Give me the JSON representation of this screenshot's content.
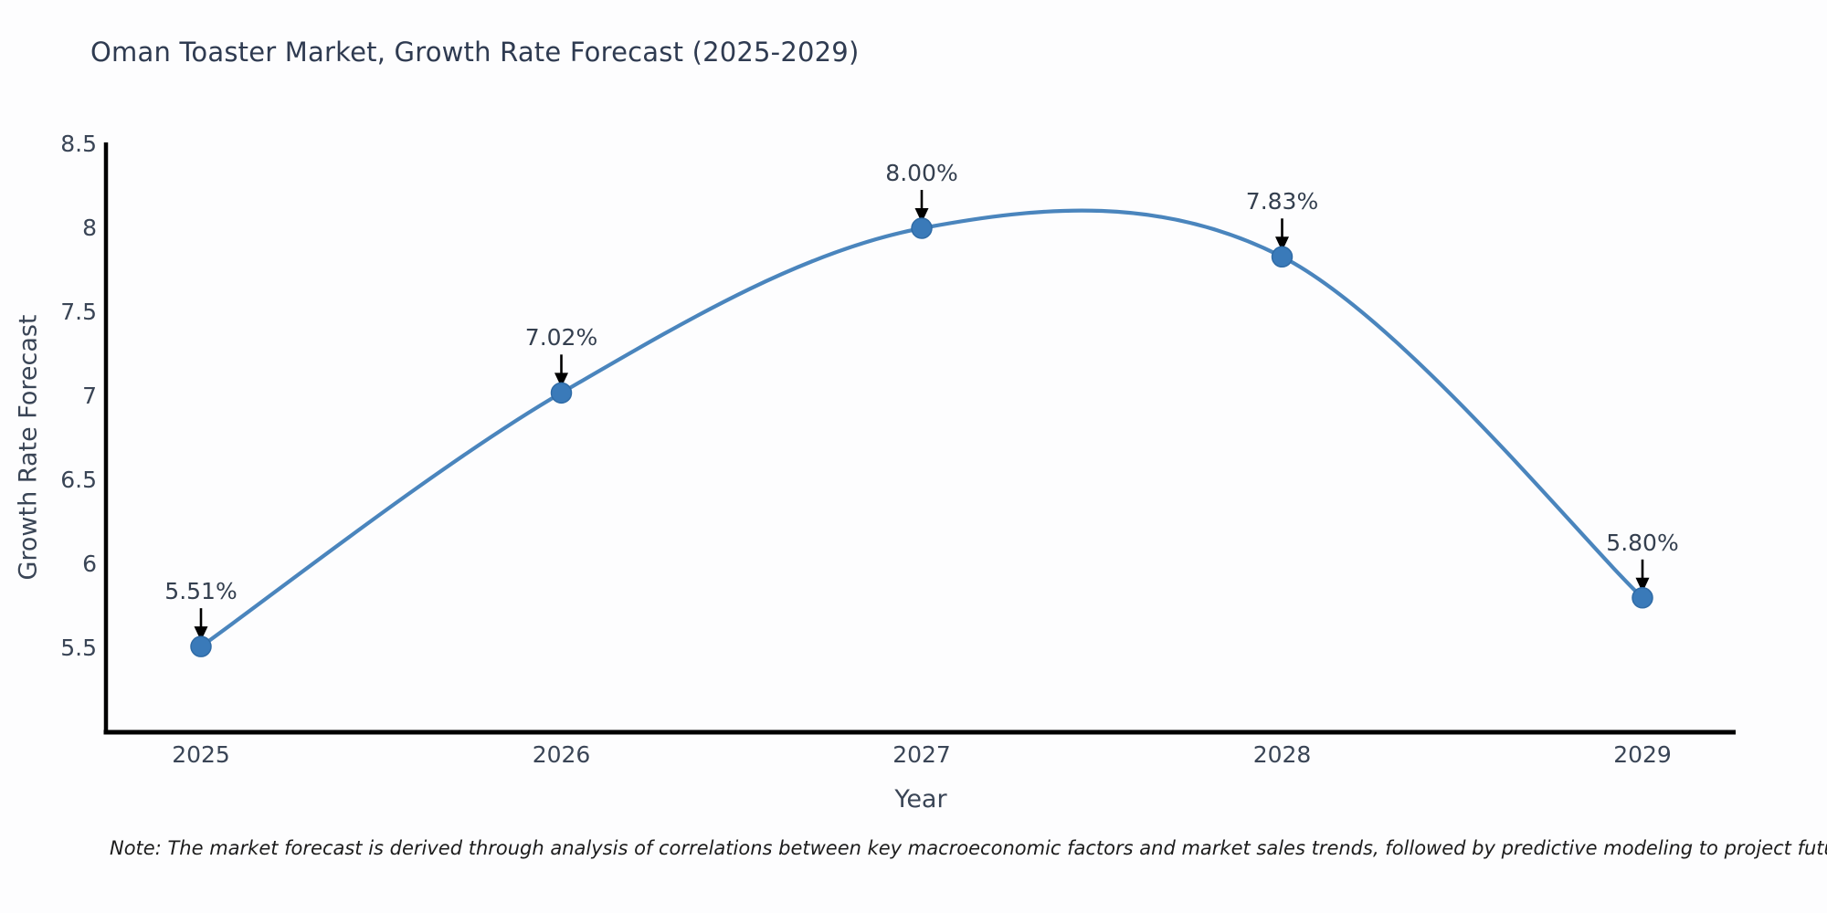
{
  "page": {
    "background": "#fdfdfe"
  },
  "chart_data": {
    "type": "line",
    "title": "Oman Toaster Market, Growth Rate Forecast (2025-2029)",
    "xlabel": "Year",
    "ylabel": "Growth Rate Forecast",
    "categories": [
      "2025",
      "2026",
      "2027",
      "2028",
      "2029"
    ],
    "values": [
      5.51,
      7.02,
      8.0,
      7.83,
      5.8
    ],
    "point_labels": [
      "5.51%",
      "7.02%",
      "8.00%",
      "7.83%",
      "5.80%"
    ],
    "y_ticks": [
      "8.5",
      "8",
      "7.5",
      "7",
      "6.5",
      "6",
      "5.5"
    ],
    "y_tick_values": [
      8.5,
      8.0,
      7.5,
      7.0,
      6.5,
      6.0,
      5.5
    ],
    "ylim": [
      5.0,
      8.5
    ],
    "line_shape": "spline",
    "grid": false,
    "legend_position": "none",
    "colors": {
      "line": "#4a85bd",
      "marker": "#3a7ab9",
      "marker_edge": "#2f6ba6",
      "arrow": "#000000",
      "axis": "#000000",
      "tick_text": "#3a4556",
      "title_text": "#2f3b51",
      "note_text": "#1c1c1c"
    },
    "note": "Note: The market forecast is derived through analysis of correlations between key macroeconomic factors and market sales trends, followed by predictive modeling to project future sales"
  }
}
